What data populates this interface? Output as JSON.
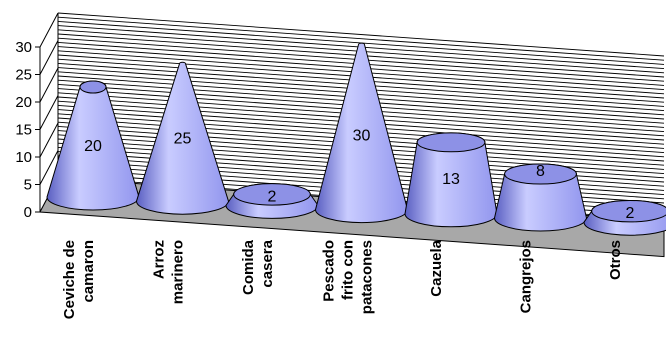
{
  "chart_data": {
    "type": "bar",
    "shape": "cone",
    "categories": [
      [
        "Ceviche de",
        "camaron"
      ],
      [
        "Arroz",
        "marinero"
      ],
      [
        "Comida",
        "casera"
      ],
      [
        "Pescado",
        "frito con",
        "patacones"
      ],
      [
        "Cazuela"
      ],
      [
        "Cangrejos"
      ],
      [
        "Otros"
      ]
    ],
    "values": [
      20,
      25,
      2,
      30,
      13,
      8,
      2
    ],
    "data_labels": [
      "20",
      "25",
      "2",
      "30",
      "13",
      "8",
      "2"
    ],
    "yticks": [
      "0",
      "5",
      "10",
      "15",
      "20",
      "25",
      "30"
    ],
    "ylim": [
      0,
      30
    ],
    "title": "",
    "xlabel": "",
    "ylabel": "",
    "grid": true,
    "legend": "none",
    "colors": {
      "bar_light": "#c9ccff",
      "bar_mid": "#9296ee",
      "bar_dark": "#5a5fc2",
      "bar_top": "#8d91e6",
      "floor": "#a8a8a8",
      "grid": "#000000"
    }
  }
}
